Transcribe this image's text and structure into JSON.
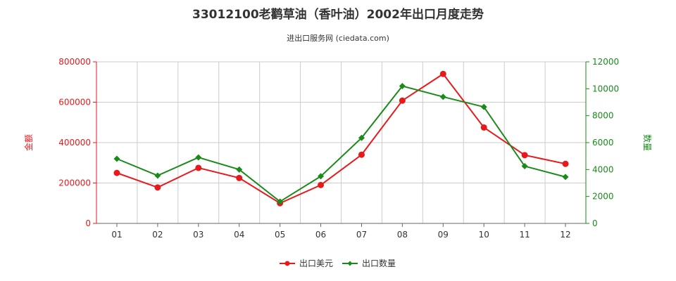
{
  "header": {
    "title": "33012100老鹳草油（香叶油）2002年出口月度走势",
    "subtitle": "进出口服务网 (ciedata.com)"
  },
  "colors": {
    "left": "#e8191b",
    "right": "#1a8a1a",
    "grid": "#cccccc",
    "axis": "#666666"
  },
  "chart_data": {
    "type": "line",
    "title": "33012100老鹳草油（香叶油）2002年出口月度走势",
    "subtitle": "进出口服务网 (ciedata.com)",
    "categories": [
      "01",
      "02",
      "03",
      "04",
      "05",
      "06",
      "07",
      "08",
      "09",
      "10",
      "11",
      "12"
    ],
    "y_left": {
      "label": "金额",
      "range": [
        0,
        800000
      ],
      "ticks": [
        "0",
        "200000",
        "400000",
        "600000",
        "800000"
      ]
    },
    "y_right": {
      "label": "数量",
      "range": [
        0,
        12000
      ],
      "ticks": [
        "0",
        "2000",
        "4000",
        "6000",
        "8000",
        "10000",
        "12000"
      ]
    },
    "series": [
      {
        "name": "出口美元",
        "axis": "left",
        "color": "#e8191b",
        "values": [
          250000,
          178000,
          275000,
          225000,
          100000,
          190000,
          340000,
          608000,
          740000,
          475000,
          338000,
          295000
        ]
      },
      {
        "name": "出口数量",
        "axis": "right",
        "color": "#1a8a1a",
        "values": [
          4800,
          3550,
          4900,
          4000,
          1620,
          3500,
          6350,
          10200,
          9400,
          8650,
          4250,
          3450
        ]
      }
    ],
    "grid": true,
    "legend": "bottom-center"
  }
}
